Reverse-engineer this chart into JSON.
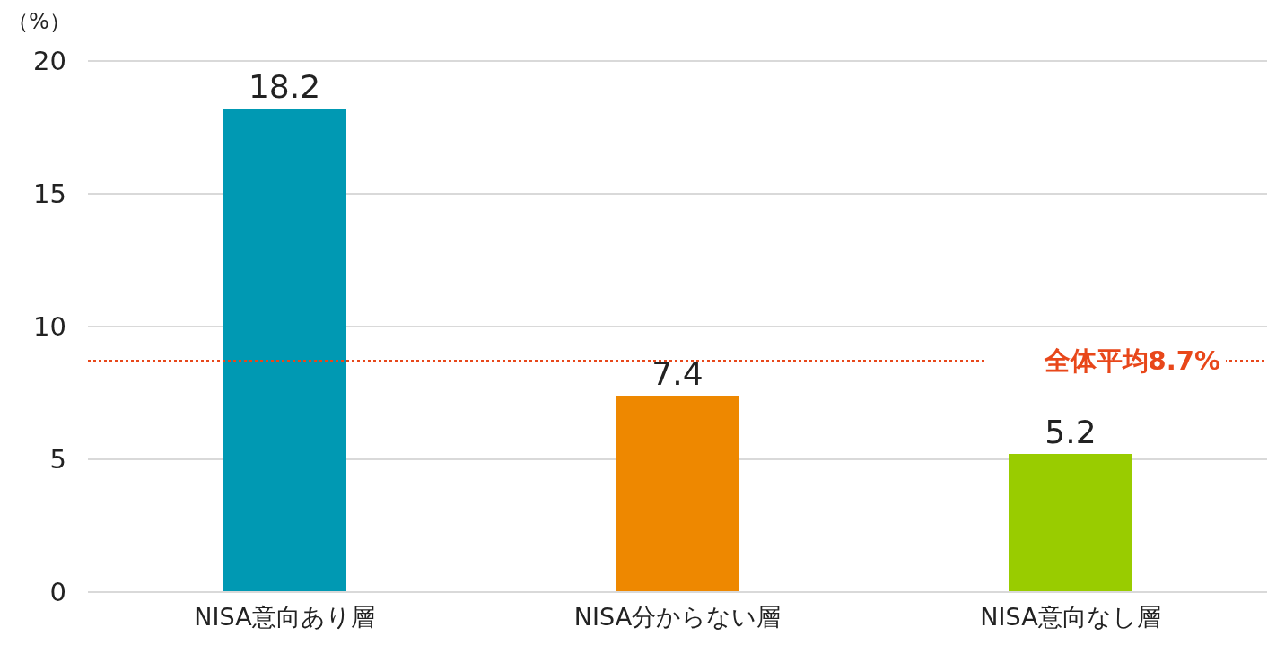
{
  "chart_data": {
    "type": "bar",
    "ylabel": "（%）",
    "categories": [
      "NISA意向あり層",
      "NISA分からない層",
      "NISA意向なし層"
    ],
    "values": [
      18.2,
      7.4,
      5.2
    ],
    "colors": [
      "#0099b3",
      "#ee8800",
      "#99cc00"
    ],
    "ylim": [
      0,
      20
    ],
    "yticks": [
      0,
      5,
      10,
      15,
      20
    ],
    "grid": "y",
    "data_labels": true,
    "ref_lines": [
      {
        "axis": "y",
        "value": 8.7,
        "label": "全体平均8.7%",
        "color": "#e8471a",
        "line_style": "dotted"
      }
    ]
  }
}
